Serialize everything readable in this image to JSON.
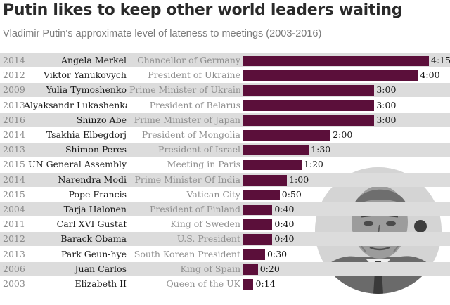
{
  "header": {
    "title": "Putin likes to keep other world leaders waiting",
    "subtitle": "Vladimir Putin's approximate level of lateness to meetings (2003-2016)"
  },
  "colors": {
    "bar": "#5b0f3a",
    "row_shade": "#dcdcdc"
  },
  "chart_data": {
    "type": "bar",
    "orientation": "horizontal",
    "title": "Putin likes to keep other world leaders waiting",
    "subtitle": "Vladimir Putin's approximate level of lateness to meetings (2003-2016)",
    "value_unit": "hours",
    "xlim": [
      0,
      4.25
    ],
    "grid": false,
    "rows": [
      {
        "year": "2014",
        "name": "Angela Merkel",
        "role": "Chancellor of Germany",
        "value": 4.25,
        "label": "4:15"
      },
      {
        "year": "2012",
        "name": "Viktor Yanukovych",
        "role": "President of Ukraine",
        "value": 4.0,
        "label": "4:00"
      },
      {
        "year": "2009",
        "name": "Yulia Tymoshenko",
        "role": "Prime Minister of Ukraine",
        "value": 3.0,
        "label": "3:00"
      },
      {
        "year": "2013",
        "name": "Alyaksandr Lukashenka",
        "role": "President of Belarus",
        "value": 3.0,
        "label": "3:00"
      },
      {
        "year": "2016",
        "name": "Shinzo Abe",
        "role": "Prime Minister of Japan",
        "value": 3.0,
        "label": "3:00"
      },
      {
        "year": "2014",
        "name": "Tsakhia Elbegdorj",
        "role": "President of Mongolia",
        "value": 2.0,
        "label": "2:00"
      },
      {
        "year": "2013",
        "name": "Shimon Peres",
        "role": "President of Israel",
        "value": 1.5,
        "label": "1:30"
      },
      {
        "year": "2015",
        "name": "UN General Assembly",
        "role": "Meeting in Paris",
        "value": 1.3333,
        "label": "1:20"
      },
      {
        "year": "2014",
        "name": "Narendra Modi",
        "role": "Prime Minister Of India",
        "value": 1.0,
        "label": "1:00"
      },
      {
        "year": "2015",
        "name": "Pope Francis",
        "role": "Vatican City",
        "value": 0.8333,
        "label": "0:50"
      },
      {
        "year": "2004",
        "name": "Tarja Halonen",
        "role": "President of Finland",
        "value": 0.6667,
        "label": "0:40"
      },
      {
        "year": "2011",
        "name": "Carl XVI Gustaf",
        "role": "King of Sweden",
        "value": 0.6667,
        "label": "0:40"
      },
      {
        "year": "2012",
        "name": "Barack Obama",
        "role": "U.S. President",
        "value": 0.6667,
        "label": "0:40"
      },
      {
        "year": "2013",
        "name": "Park Geun-hye",
        "role": "South Korean President",
        "value": 0.5,
        "label": "0:30"
      },
      {
        "year": "2006",
        "name": "Juan Carlos",
        "role": "King of Spain",
        "value": 0.3333,
        "label": "0:20"
      },
      {
        "year": "2003",
        "name": "Elizabeth II",
        "role": "Queen of the UK",
        "value": 0.2333,
        "label": "0:14"
      }
    ]
  }
}
